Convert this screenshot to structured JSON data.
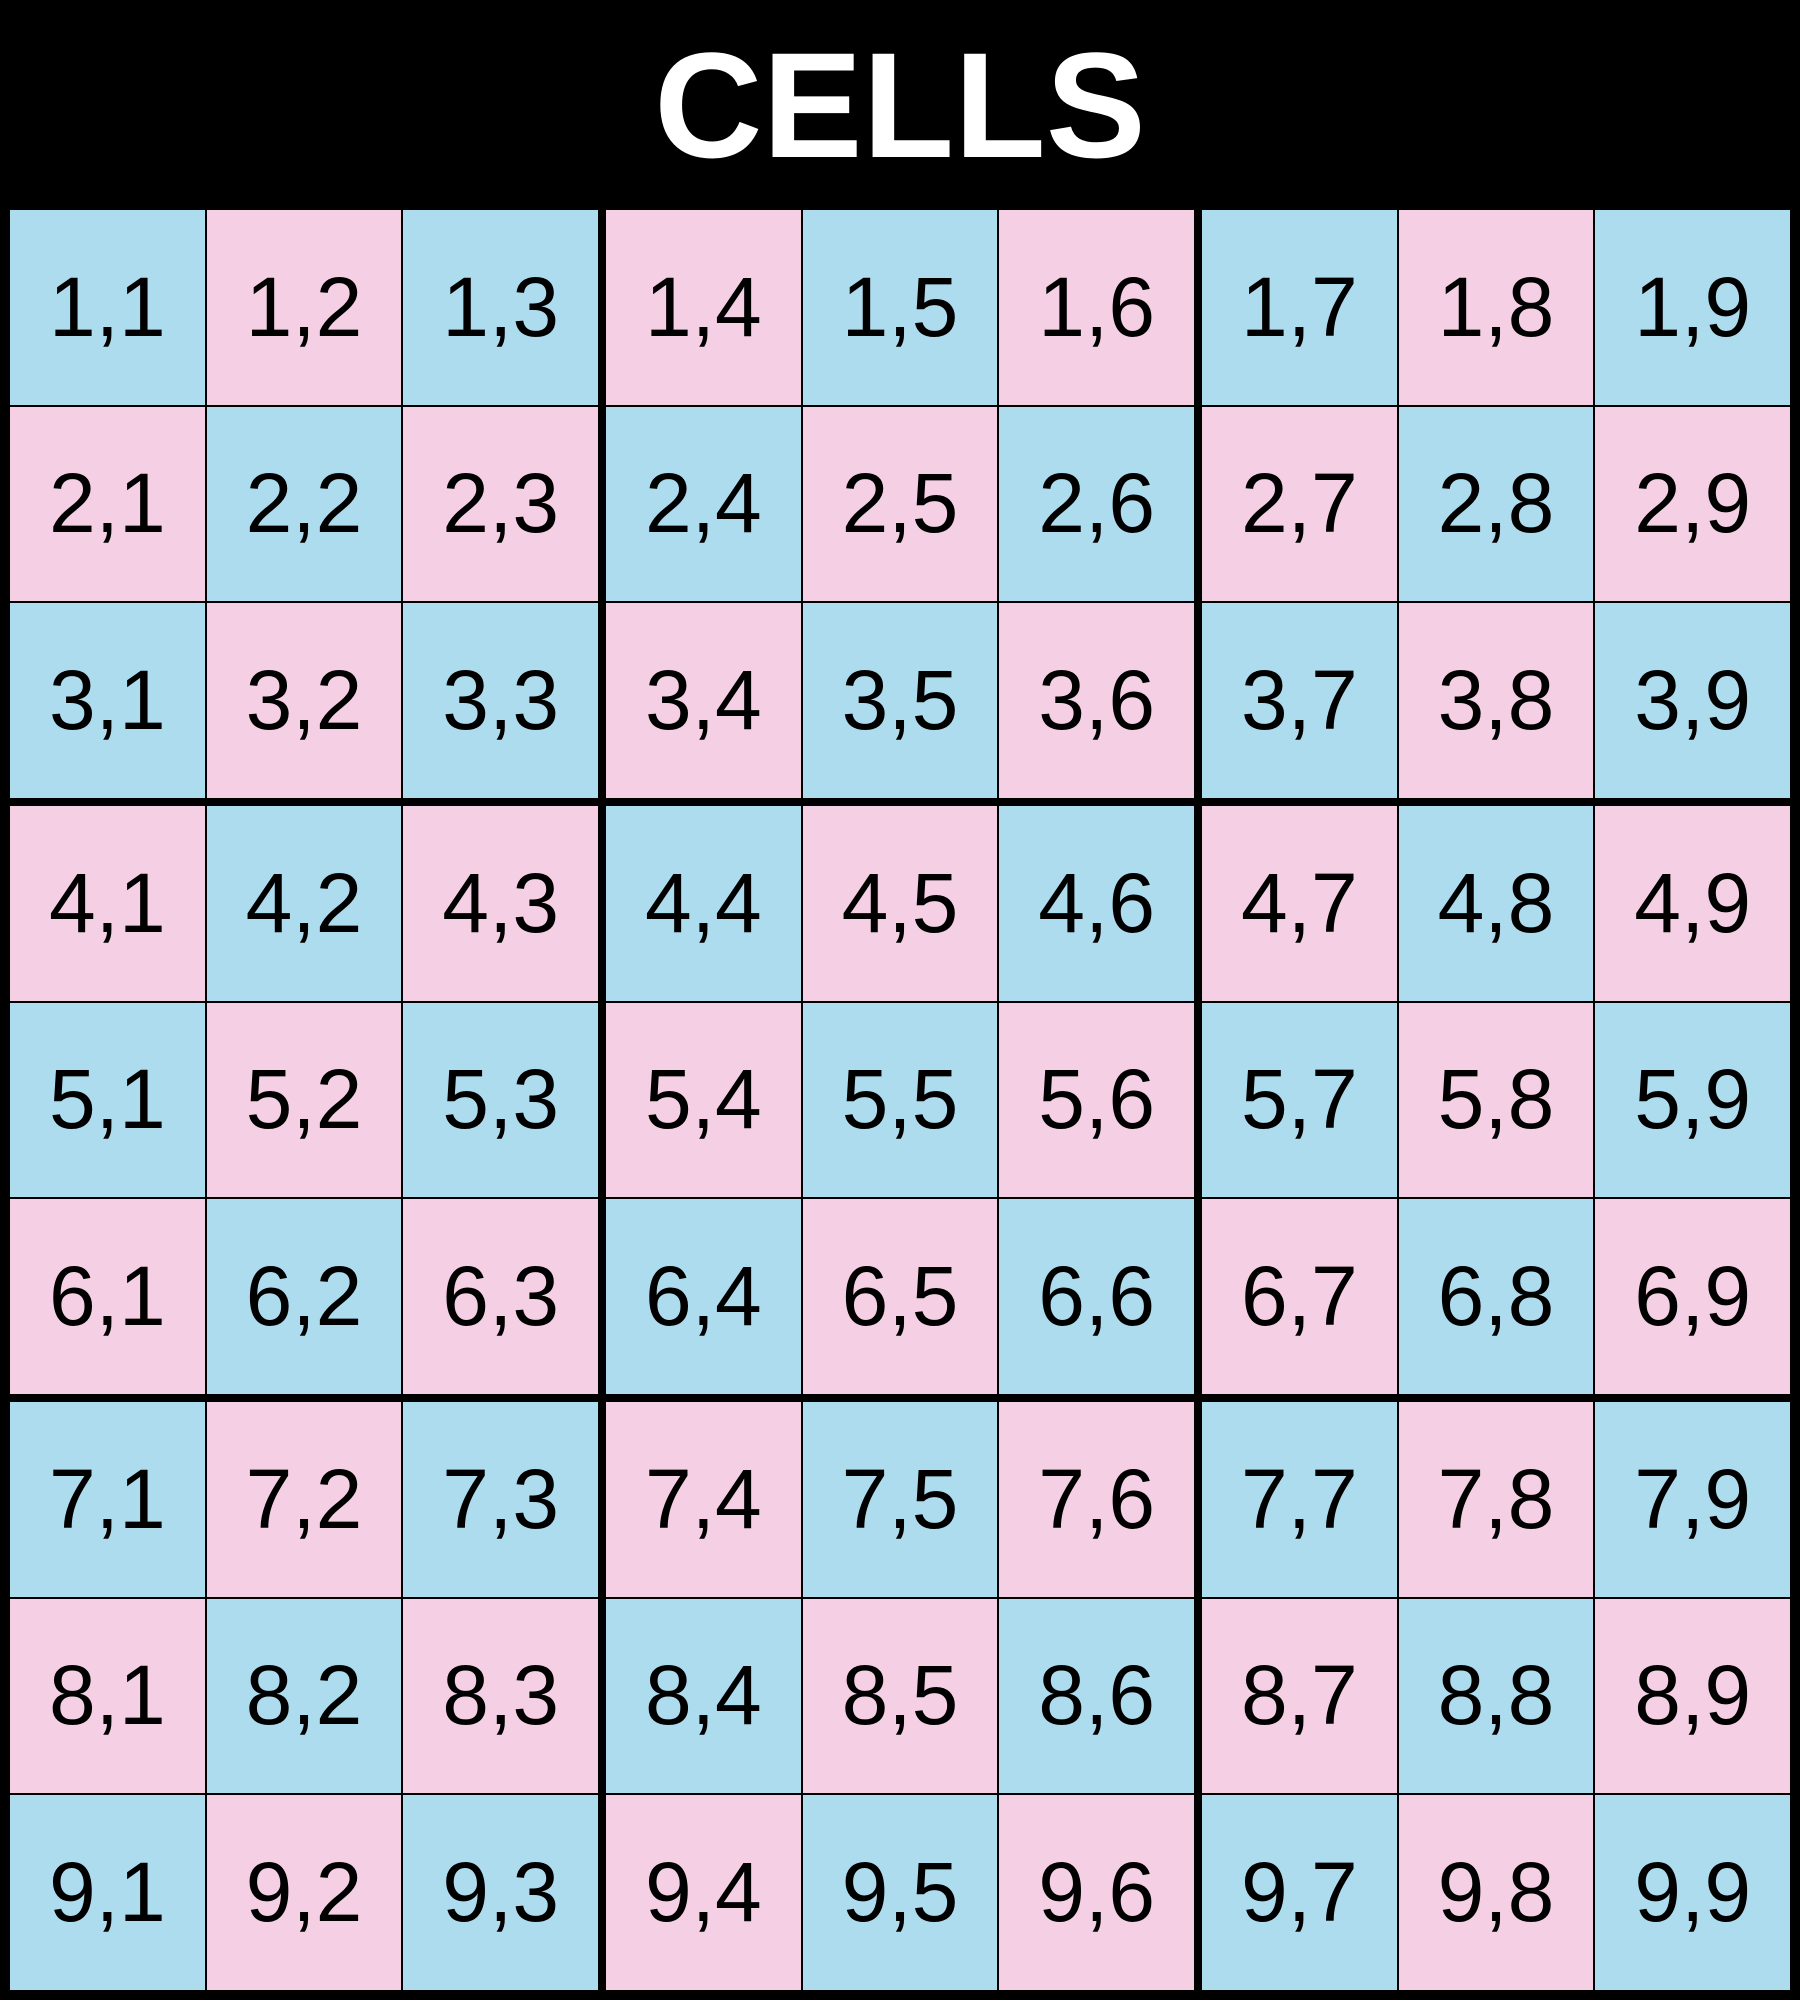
{
  "title": "CELLS",
  "grid": {
    "rows": [
      [
        "1,1",
        "1,2",
        "1,3",
        "1,4",
        "1,5",
        "1,6",
        "1,7",
        "1,8",
        "1,9"
      ],
      [
        "2,1",
        "2,2",
        "2,3",
        "2,4",
        "2,5",
        "2,6",
        "2,7",
        "2,8",
        "2,9"
      ],
      [
        "3,1",
        "3,2",
        "3,3",
        "3,4",
        "3,5",
        "3,6",
        "3,7",
        "3,8",
        "3,9"
      ],
      [
        "4,1",
        "4,2",
        "4,3",
        "4,4",
        "4,5",
        "4,6",
        "4,7",
        "4,8",
        "4,9"
      ],
      [
        "5,1",
        "5,2",
        "5,3",
        "5,4",
        "5,5",
        "5,6",
        "5,7",
        "5,8",
        "5,9"
      ],
      [
        "6,1",
        "6,2",
        "6,3",
        "6,4",
        "6,5",
        "6,6",
        "6,7",
        "6,8",
        "6,9"
      ],
      [
        "7,1",
        "7,2",
        "7,3",
        "7,4",
        "7,5",
        "7,6",
        "7,7",
        "7,8",
        "7,9"
      ],
      [
        "8,1",
        "8,2",
        "8,3",
        "8,4",
        "8,5",
        "8,6",
        "8,7",
        "8,8",
        "8,9"
      ],
      [
        "9,1",
        "9,2",
        "9,3",
        "9,4",
        "9,5",
        "9,6",
        "9,7",
        "9,8",
        "9,9"
      ]
    ]
  }
}
